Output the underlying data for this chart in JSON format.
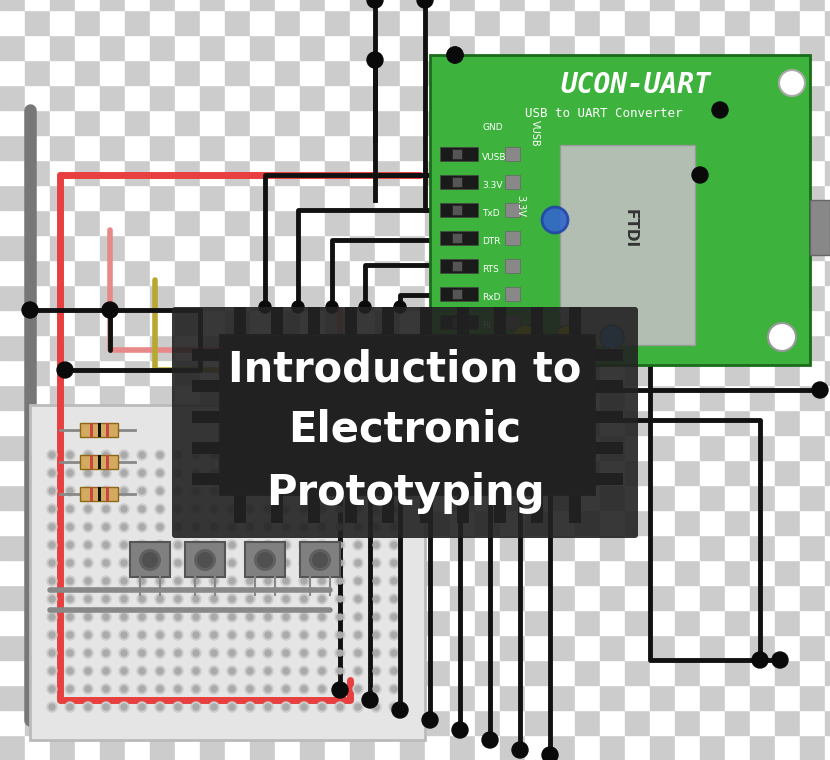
{
  "title_line1": "Introduction to",
  "title_line2": "Electronic",
  "title_line3": "Prototyping",
  "title_color": "#ffffff",
  "title_bg_color": "#222222",
  "title_bg_alpha": 0.9,
  "bg_checker_color1": "#cccccc",
  "bg_checker_color2": "#ffffff",
  "green_board_color": "#3db33d",
  "breadboard_color": "#e0e0e0",
  "breadboard_border": "#aaaaaa",
  "wire_red": "#e84040",
  "wire_black": "#111111",
  "wire_gray": "#777777",
  "wire_yellow": "#b8a830",
  "wire_pink": "#e88888",
  "chip_color": "#1a1a1a",
  "dot_color": "#0a0a0a",
  "figsize": [
    8.3,
    7.6
  ],
  "dpi": 100
}
